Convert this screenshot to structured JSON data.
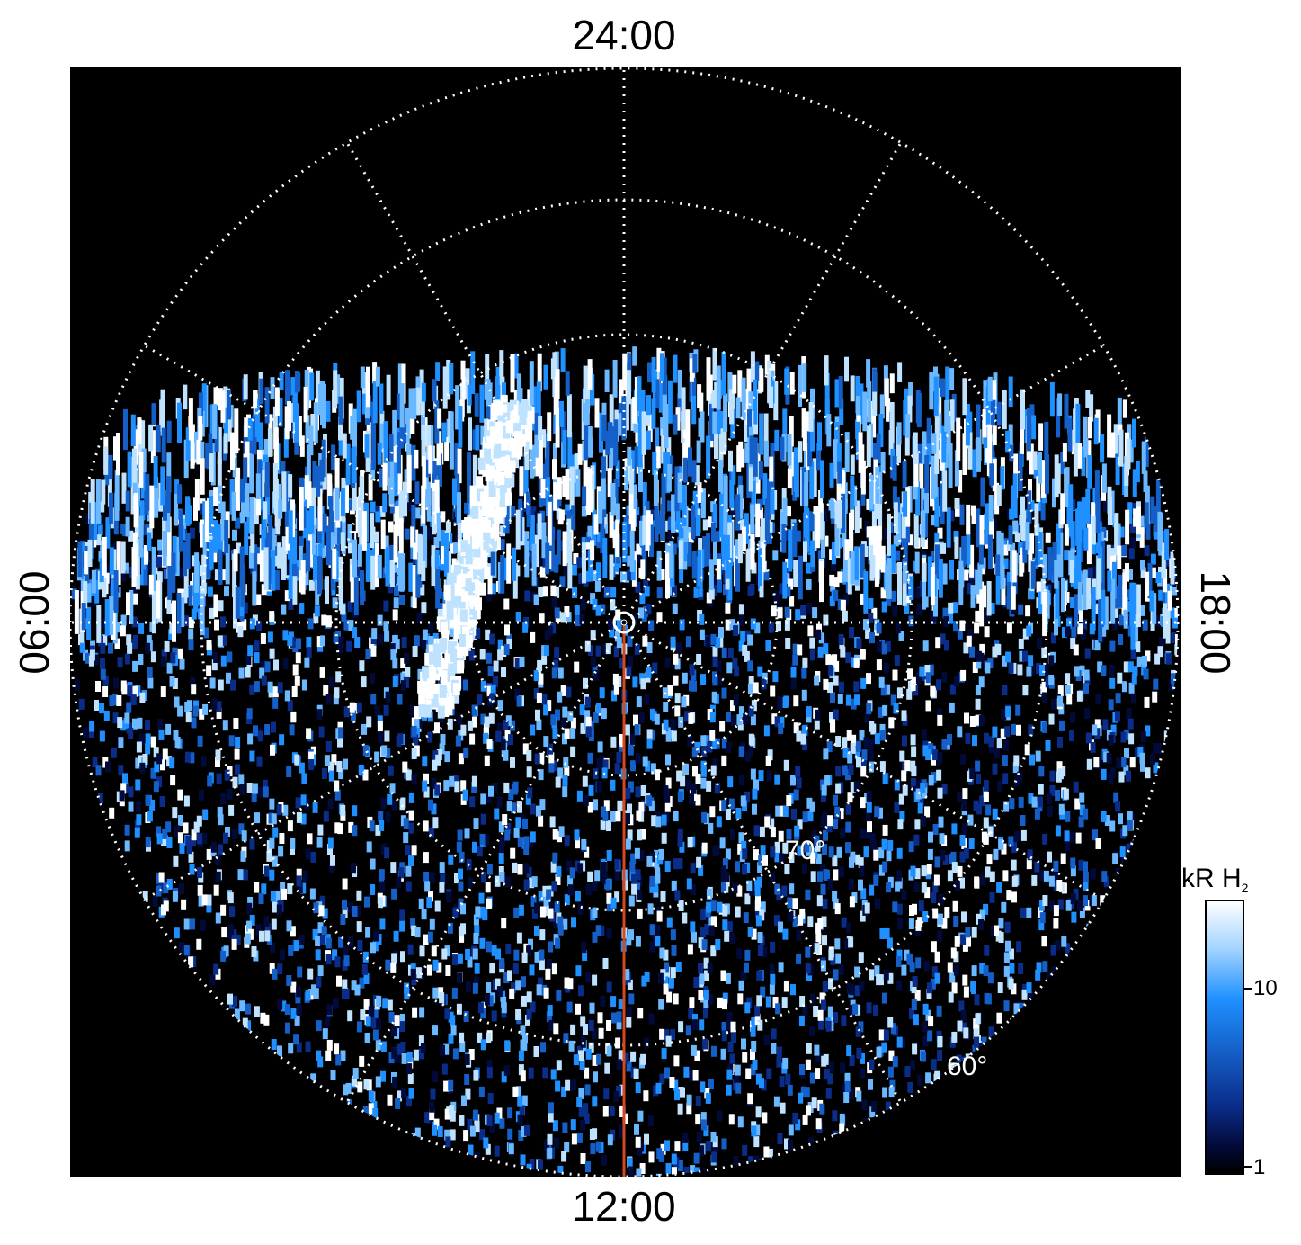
{
  "labels": {
    "top": "24:00",
    "bottom": "12:00",
    "left": "06:00",
    "right": "18:00"
  },
  "latitude_labels": {
    "lat70": "70°",
    "lat60": "60°"
  },
  "colorbar": {
    "title": "kR H",
    "title_subscript": "2",
    "ticks": [
      "10",
      "1"
    ],
    "colors": [
      "#000000",
      "#0a2d8a",
      "#1e90ff",
      "#9fd2ff",
      "#ffffff"
    ]
  },
  "colors": {
    "background": "#000000",
    "grid": "#ffffff",
    "meridian_line": "#d24a1e"
  }
}
